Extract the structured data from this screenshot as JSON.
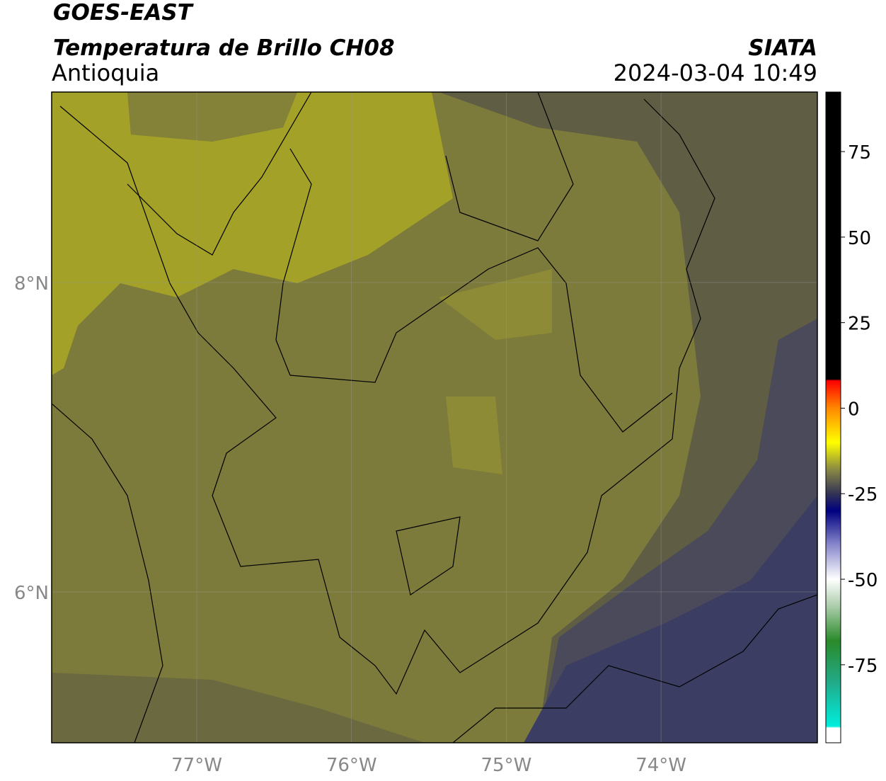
{
  "chart_data": {
    "type": "map",
    "title": "GOES-EAST",
    "subtitle": "Temperatura de Brillo CH08",
    "region": "Antioquia",
    "source": "SIATA",
    "timestamp": "2024-03-04 10:49",
    "xlim": [
      -77.9375,
      -72.99
    ],
    "ylim": [
      5.025,
      9.231
    ],
    "xticks": [
      {
        "value": -77,
        "label": "77°W"
      },
      {
        "value": -76,
        "label": "76°W"
      },
      {
        "value": -75,
        "label": "75°W"
      },
      {
        "value": -74,
        "label": "74°W"
      }
    ],
    "yticks": [
      {
        "value": 8,
        "label": "8°N"
      },
      {
        "value": 6,
        "label": "6°N"
      }
    ],
    "grid": true,
    "colorbar": {
      "lim": [
        -97.8,
        92.4
      ],
      "ticks": [
        75,
        50,
        25,
        0,
        -25,
        -50,
        -75
      ],
      "stops": [
        {
          "value": -97.8,
          "color": "#ffffff"
        },
        {
          "value": -93.5,
          "color": "#ffffff"
        },
        {
          "value": -93,
          "color": "#00eedd"
        },
        {
          "value": -80,
          "color": "#22aa88"
        },
        {
          "value": -68,
          "color": "#2a8a2a"
        },
        {
          "value": -58,
          "color": "#aaccaa"
        },
        {
          "value": -50,
          "color": "#ffffff"
        },
        {
          "value": -40,
          "color": "#8888cc"
        },
        {
          "value": -30,
          "color": "#000080"
        },
        {
          "value": -25,
          "color": "#333355"
        },
        {
          "value": -18,
          "color": "#888844"
        },
        {
          "value": -10,
          "color": "#ffff00"
        },
        {
          "value": 0,
          "color": "#ff8800"
        },
        {
          "value": 8,
          "color": "#ff0000"
        },
        {
          "value": 8.5,
          "color": "#000000"
        },
        {
          "value": 92.4,
          "color": "#000000"
        }
      ]
    }
  }
}
